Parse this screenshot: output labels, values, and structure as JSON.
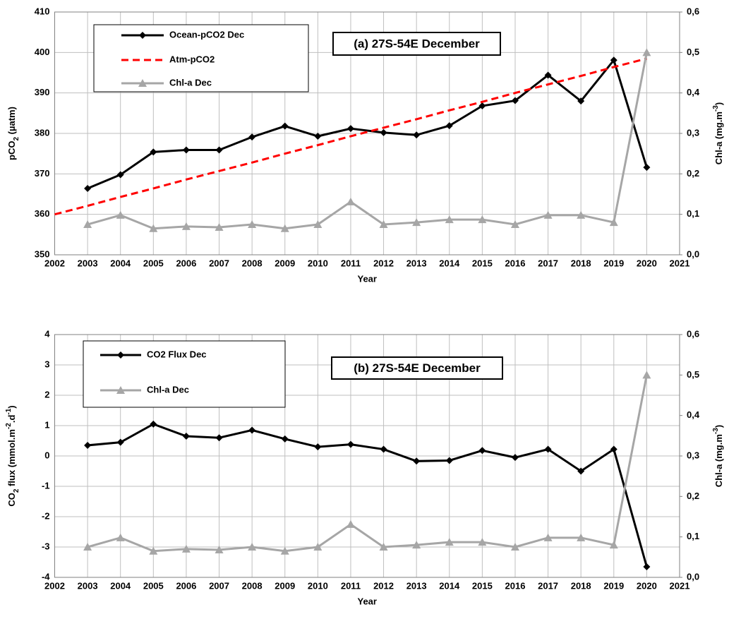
{
  "chart_data": [
    {
      "type": "line",
      "annotation": "(a) 27S-54E December",
      "xlabel": "Year",
      "ylabel": [
        {
          "text": "pCO"
        },
        {
          "text": "2",
          "script": "sub"
        },
        {
          "text": " (µatm)"
        }
      ],
      "y2label": [
        {
          "text": "Chl-a (mg.m"
        },
        {
          "text": "-3",
          "script": "super"
        },
        {
          "text": ")"
        }
      ],
      "xlim": [
        2002,
        2021
      ],
      "xticks": [
        2002,
        2003,
        2004,
        2005,
        2006,
        2007,
        2008,
        2009,
        2010,
        2011,
        2012,
        2013,
        2014,
        2015,
        2016,
        2017,
        2018,
        2019,
        2020,
        2021
      ],
      "ylim": [
        350,
        410
      ],
      "yticks": [
        350,
        360,
        370,
        380,
        390,
        400,
        410
      ],
      "y2lim": [
        0,
        0.6
      ],
      "y2ticks": [
        {
          "value": 0,
          "label": "0,0"
        },
        {
          "value": 0.1,
          "label": "0,1"
        },
        {
          "value": 0.2,
          "label": "0,2"
        },
        {
          "value": 0.3,
          "label": "0,3"
        },
        {
          "value": 0.4,
          "label": "0,4"
        },
        {
          "value": 0.5,
          "label": "0,5"
        },
        {
          "value": 0.6,
          "label": "0,6"
        }
      ],
      "grid": true,
      "series": [
        {
          "name": "Ocean-pCO2 Dec",
          "color": "#000000",
          "marker": "diamond",
          "x": [
            2003,
            2004,
            2005,
            2006,
            2007,
            2008,
            2009,
            2010,
            2011,
            2012,
            2013,
            2014,
            2015,
            2016,
            2017,
            2018,
            2019,
            2020
          ],
          "values": [
            366.4,
            369.8,
            375.4,
            375.9,
            375.9,
            379.1,
            381.8,
            379.3,
            381.2,
            380.2,
            379.6,
            381.9,
            386.8,
            388.1,
            394.4,
            388,
            398.1,
            371.6
          ]
        },
        {
          "name": "Atm-pCO2",
          "color": "#ff0000",
          "dash": "dashed",
          "x": [
            2002,
            2003,
            2004,
            2005,
            2006,
            2007,
            2008,
            2009,
            2010,
            2011,
            2012,
            2013,
            2014,
            2015,
            2016,
            2017,
            2018,
            2019,
            2020
          ],
          "values": [
            360,
            362.1,
            364.3,
            366.4,
            368.6,
            370.7,
            372.8,
            375,
            377.1,
            379.3,
            381.4,
            383.5,
            385.7,
            387.8,
            390,
            392.1,
            394.2,
            396.4,
            398.5
          ]
        },
        {
          "name": "Chl-a Dec",
          "color": "#a6a6a6",
          "marker": "triangle",
          "axis": "y2",
          "x": [
            2003,
            2004,
            2005,
            2006,
            2007,
            2008,
            2009,
            2010,
            2011,
            2012,
            2013,
            2014,
            2015,
            2016,
            2017,
            2018,
            2019,
            2020
          ],
          "values": [
            0.075,
            0.098,
            0.065,
            0.07,
            0.068,
            0.075,
            0.065,
            0.075,
            0.131,
            0.075,
            0.08,
            0.087,
            0.087,
            0.075,
            0.098,
            0.098,
            0.08,
            0.5
          ]
        }
      ]
    },
    {
      "type": "line",
      "annotation": "(b) 27S-54E December",
      "xlabel": "Year",
      "ylabel": [
        {
          "text": "CO"
        },
        {
          "text": "2",
          "script": "sub"
        },
        {
          "text": " flux (mmol.m"
        },
        {
          "text": "-2",
          "script": "super"
        },
        {
          "text": ".d"
        },
        {
          "text": "-1",
          "script": "super"
        },
        {
          "text": ")"
        }
      ],
      "y2label": [
        {
          "text": "Chl-a (mg.m"
        },
        {
          "text": "-3",
          "script": "super"
        },
        {
          "text": ")"
        }
      ],
      "xlim": [
        2002,
        2021
      ],
      "xticks": [
        2002,
        2003,
        2004,
        2005,
        2006,
        2007,
        2008,
        2009,
        2010,
        2011,
        2012,
        2013,
        2014,
        2015,
        2016,
        2017,
        2018,
        2019,
        2020,
        2021
      ],
      "ylim": [
        -4,
        4
      ],
      "yticks": [
        -4,
        -3,
        -2,
        -1,
        0,
        1,
        2,
        3,
        4
      ],
      "y2lim": [
        0,
        0.6
      ],
      "y2ticks": [
        {
          "value": 0,
          "label": "0,0"
        },
        {
          "value": 0.1,
          "label": "0,1"
        },
        {
          "value": 0.2,
          "label": "0,2"
        },
        {
          "value": 0.3,
          "label": "0,3"
        },
        {
          "value": 0.4,
          "label": "0,4"
        },
        {
          "value": 0.5,
          "label": "0,5"
        },
        {
          "value": 0.6,
          "label": "0,6"
        }
      ],
      "grid": true,
      "series": [
        {
          "name": "CO2 Flux Dec",
          "color": "#000000",
          "marker": "diamond",
          "x": [
            2003,
            2004,
            2005,
            2006,
            2007,
            2008,
            2009,
            2010,
            2011,
            2012,
            2013,
            2014,
            2015,
            2016,
            2017,
            2018,
            2019,
            2020
          ],
          "values": [
            0.35,
            0.45,
            1.05,
            0.65,
            0.6,
            0.85,
            0.56,
            0.3,
            0.38,
            0.22,
            -0.17,
            -0.15,
            0.18,
            -0.05,
            0.22,
            -0.5,
            0.22,
            -3.65
          ]
        },
        {
          "name": "Chl-a Dec",
          "color": "#a6a6a6",
          "marker": "triangle",
          "axis": "y2",
          "x": [
            2003,
            2004,
            2005,
            2006,
            2007,
            2008,
            2009,
            2010,
            2011,
            2012,
            2013,
            2014,
            2015,
            2016,
            2017,
            2018,
            2019,
            2020
          ],
          "values": [
            0.075,
            0.098,
            0.065,
            0.07,
            0.068,
            0.075,
            0.065,
            0.075,
            0.131,
            0.075,
            0.08,
            0.087,
            0.087,
            0.075,
            0.098,
            0.098,
            0.08,
            0.5
          ]
        }
      ]
    }
  ]
}
